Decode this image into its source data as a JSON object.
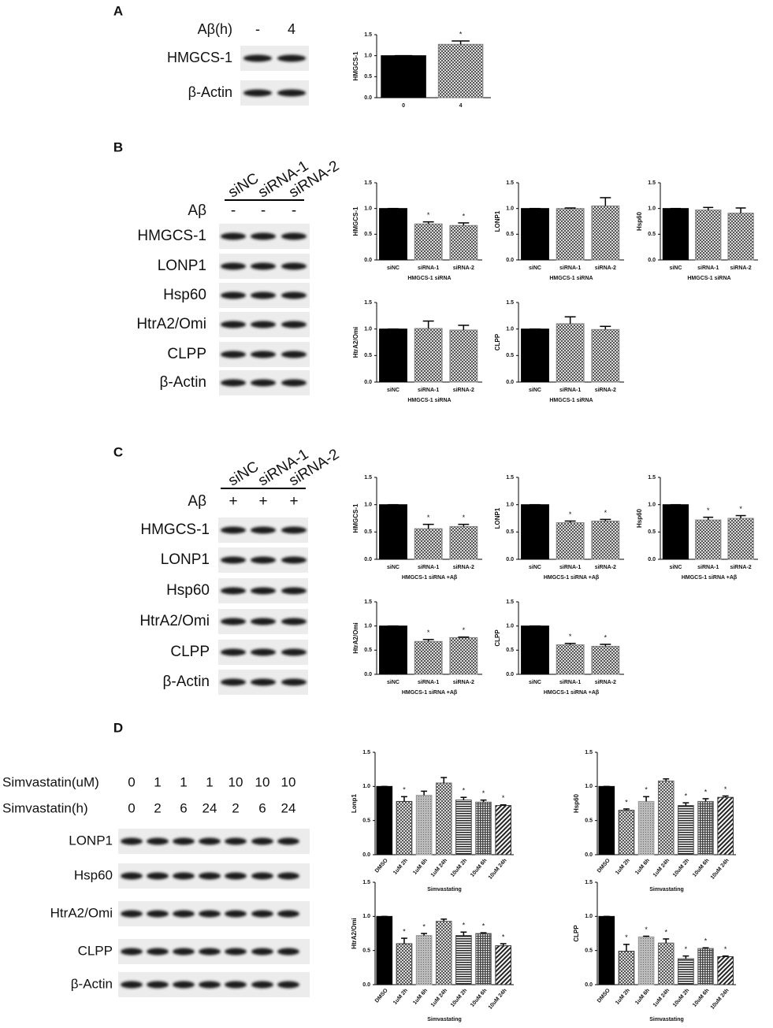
{
  "panels": [
    "A",
    "B",
    "C",
    "D"
  ],
  "blots": [
    {
      "headers": [
        {
          "name": "Aβ(h)",
          "lanes": [
            "-",
            "4"
          ]
        }
      ],
      "rows": [
        "HMGCS-1",
        "β-Actin"
      ]
    },
    {
      "lane_names": [
        "siNC",
        "siRNA-1",
        "siRNA-2"
      ],
      "headers": [
        {
          "name": "Aβ",
          "lanes": [
            "-",
            "-",
            "-"
          ]
        }
      ],
      "rows": [
        "HMGCS-1",
        "LONP1",
        "Hsp60",
        "HtrA2/Omi",
        "CLPP",
        "β-Actin"
      ]
    },
    {
      "lane_names": [
        "siNC",
        "siRNA-1",
        "siRNA-2"
      ],
      "headers": [
        {
          "name": "Aβ",
          "lanes": [
            "+",
            "+",
            "+"
          ]
        }
      ],
      "rows": [
        "HMGCS-1",
        "LONP1",
        "Hsp60",
        "HtrA2/Omi",
        "CLPP",
        "β-Actin"
      ]
    },
    {
      "headers": [
        {
          "name": "Simvastatin(uM)",
          "lanes": [
            "0",
            "1",
            "1",
            "1",
            "10",
            "10",
            "10"
          ]
        },
        {
          "name": "Simvastatin(h)",
          "lanes": [
            "0",
            "2",
            "6",
            "24",
            "2",
            "6",
            "24"
          ]
        }
      ],
      "rows": [
        "LONP1",
        "Hsp60",
        "HtrA2/Omi",
        "CLPP",
        "β-Actin"
      ]
    }
  ],
  "chart_data": [
    {
      "type": "bar",
      "ylabel": "HMGCS-1",
      "categories": [
        "0",
        "4"
      ],
      "values": [
        1.0,
        1.27
      ],
      "errors": [
        0,
        0.08
      ],
      "value_annotations": [
        null,
        "*"
      ],
      "colors": [
        "#000000",
        "#808080"
      ],
      "patterns": [
        "solid",
        "check"
      ],
      "ylim": [
        0,
        1.5
      ],
      "yticks": [
        {
          "value": 0,
          "label": "0.0"
        },
        0.5,
        {
          "value": 1,
          "label": "1.0"
        },
        1.5
      ]
    },
    {
      "type": "bar",
      "ylabel": "HMGCS-1",
      "xlabel": "HMGCS-1 siRNA",
      "categories": [
        "siNC",
        "siRNA-1",
        "siRNA-2"
      ],
      "values": [
        1.0,
        0.7,
        0.67
      ],
      "errors": [
        0,
        0.04,
        0.05
      ],
      "value_annotations": [
        null,
        "*",
        "*"
      ],
      "colors": [
        "#000000",
        "#808080",
        "#808080"
      ],
      "patterns": [
        "solid",
        "check",
        "check"
      ],
      "ylim": [
        0,
        1.5
      ],
      "yticks": [
        {
          "value": 0,
          "label": "0.0"
        },
        0.5,
        {
          "value": 1,
          "label": "1.0"
        },
        1.5
      ]
    },
    {
      "type": "bar",
      "ylabel": "LONP1",
      "xlabel": "HMGCS-1 siRNA",
      "categories": [
        "siNC",
        "siRNA-1",
        "siRNA-2"
      ],
      "values": [
        1.0,
        1.0,
        1.05
      ],
      "errors": [
        0,
        0.01,
        0.16
      ],
      "value_annotations": [
        null,
        null,
        null
      ],
      "colors": [
        "#000000",
        "#808080",
        "#808080"
      ],
      "patterns": [
        "solid",
        "check",
        "check"
      ],
      "ylim": [
        0,
        1.5
      ],
      "yticks": [
        {
          "value": 0,
          "label": "0.0"
        },
        0.5,
        {
          "value": 1,
          "label": "1.0"
        },
        1.5
      ]
    },
    {
      "type": "bar",
      "ylabel": "Hsp60",
      "xlabel": "HMGCS-1 siRNA",
      "categories": [
        "siNC",
        "siRNA-1",
        "siRNA-2"
      ],
      "values": [
        1.0,
        0.97,
        0.91
      ],
      "errors": [
        0,
        0.05,
        0.1
      ],
      "value_annotations": [
        null,
        null,
        null
      ],
      "colors": [
        "#000000",
        "#808080",
        "#808080"
      ],
      "patterns": [
        "solid",
        "check",
        "check"
      ],
      "ylim": [
        0,
        1.5
      ],
      "yticks": [
        {
          "value": 0,
          "label": "0.0"
        },
        0.5,
        {
          "value": 1,
          "label": "1.0"
        },
        1.5
      ]
    },
    {
      "type": "bar",
      "ylabel": "HtrA2/Omi",
      "xlabel": "HMGCS-1 siRNA",
      "categories": [
        "siNC",
        "siRNA-1",
        "siRNA-2"
      ],
      "values": [
        1.0,
        1.01,
        0.98
      ],
      "errors": [
        0,
        0.14,
        0.09
      ],
      "value_annotations": [
        null,
        null,
        null
      ],
      "colors": [
        "#000000",
        "#808080",
        "#808080"
      ],
      "patterns": [
        "solid",
        "check",
        "check"
      ],
      "ylim": [
        0,
        1.5
      ],
      "yticks": [
        {
          "value": 0,
          "label": "0.0"
        },
        0.5,
        {
          "value": 1,
          "label": "1.0"
        },
        1.5
      ]
    },
    {
      "type": "bar",
      "ylabel": "CLPP",
      "xlabel": "HMGCS-1 siRNA",
      "categories": [
        "siNC",
        "siRNA-1",
        "siRNA-2"
      ],
      "values": [
        1.0,
        1.1,
        0.99
      ],
      "errors": [
        0,
        0.13,
        0.06
      ],
      "value_annotations": [
        null,
        null,
        null
      ],
      "colors": [
        "#000000",
        "#808080",
        "#808080"
      ],
      "patterns": [
        "solid",
        "check",
        "check"
      ],
      "ylim": [
        0,
        1.5
      ],
      "yticks": [
        {
          "value": 0,
          "label": "0.0"
        },
        0.5,
        {
          "value": 1,
          "label": "1.0"
        },
        1.5
      ]
    },
    {
      "type": "bar",
      "ylabel": "HMGCS-1",
      "xlabel": "HMGCS-1 siRNA +Aβ",
      "categories": [
        "siNC",
        "siRNA-1",
        "siRNA-2"
      ],
      "values": [
        1.0,
        0.56,
        0.6
      ],
      "errors": [
        0,
        0.08,
        0.04
      ],
      "value_annotations": [
        null,
        "*",
        "*"
      ],
      "colors": [
        "#000000",
        "#808080",
        "#808080"
      ],
      "patterns": [
        "solid",
        "check",
        "check"
      ],
      "ylim": [
        0,
        1.5
      ],
      "yticks": [
        {
          "value": 0,
          "label": "0.0"
        },
        0.5,
        {
          "value": 1,
          "label": "1.0"
        },
        1.5
      ]
    },
    {
      "type": "bar",
      "ylabel": "LONP1",
      "xlabel": "HMGCS-1 siRNA +Aβ",
      "categories": [
        "siNC",
        "siRNA-1",
        "siRNA-2"
      ],
      "values": [
        1.0,
        0.67,
        0.7
      ],
      "errors": [
        0,
        0.03,
        0.03
      ],
      "value_annotations": [
        null,
        "*",
        "*"
      ],
      "colors": [
        "#000000",
        "#808080",
        "#808080"
      ],
      "patterns": [
        "solid",
        "check",
        "check"
      ],
      "ylim": [
        0,
        1.5
      ],
      "yticks": [
        {
          "value": 0,
          "label": "0.0"
        },
        0.5,
        {
          "value": 1,
          "label": "1.0"
        },
        1.5
      ]
    },
    {
      "type": "bar",
      "ylabel": "Hsp60",
      "xlabel": "HMGCS-1 siRNA +Aβ",
      "categories": [
        "siNC",
        "siRNA-1",
        "siRNA-2"
      ],
      "values": [
        1.0,
        0.72,
        0.75
      ],
      "errors": [
        0,
        0.05,
        0.05
      ],
      "value_annotations": [
        null,
        "*",
        "*"
      ],
      "colors": [
        "#000000",
        "#808080",
        "#808080"
      ],
      "patterns": [
        "solid",
        "check",
        "check"
      ],
      "ylim": [
        0,
        1.5
      ],
      "yticks": [
        {
          "value": 0,
          "label": "0.0"
        },
        0.5,
        {
          "value": 1,
          "label": "1.0"
        },
        1.5
      ]
    },
    {
      "type": "bar",
      "ylabel": "HtrA2/Omi",
      "xlabel": "HMGCS-1 siRNA +Aβ",
      "categories": [
        "siNC",
        "siRNA-1",
        "siRNA-2"
      ],
      "values": [
        1.0,
        0.68,
        0.76
      ],
      "errors": [
        0,
        0.04,
        0.01
      ],
      "value_annotations": [
        null,
        "*",
        "*"
      ],
      "colors": [
        "#000000",
        "#808080",
        "#808080"
      ],
      "patterns": [
        "solid",
        "check",
        "check"
      ],
      "ylim": [
        0,
        1.5
      ],
      "yticks": [
        {
          "value": 0,
          "label": "0.0"
        },
        0.5,
        {
          "value": 1,
          "label": "1.0"
        },
        1.5
      ]
    },
    {
      "type": "bar",
      "ylabel": "CLPP",
      "xlabel": "HMGCS-1 siRNA +Aβ",
      "categories": [
        "siNC",
        "siRNA-1",
        "siRNA-2"
      ],
      "values": [
        1.0,
        0.61,
        0.58
      ],
      "errors": [
        0,
        0.03,
        0.04
      ],
      "value_annotations": [
        null,
        "*",
        "*"
      ],
      "colors": [
        "#000000",
        "#808080",
        "#808080"
      ],
      "patterns": [
        "solid",
        "check",
        "check"
      ],
      "ylim": [
        0,
        1.5
      ],
      "yticks": [
        {
          "value": 0,
          "label": "0.0"
        },
        0.5,
        {
          "value": 1,
          "label": "1.0"
        },
        1.5
      ]
    },
    {
      "type": "bar",
      "ylabel": "Lonp1",
      "xlabel": "Simvastating",
      "categories": [
        "DMSO",
        "1uM 2h",
        "1uM 6h",
        "1uM 24h",
        "10uM 2h",
        "10uM 6h",
        "10uM 24h"
      ],
      "values": [
        1.0,
        0.78,
        0.87,
        1.05,
        0.8,
        0.77,
        0.72
      ],
      "errors": [
        0,
        0.07,
        0.06,
        0.08,
        0.04,
        0.03,
        0.01
      ],
      "value_annotations": [
        null,
        "*",
        null,
        null,
        "*",
        "*",
        "*"
      ],
      "colors": [
        "#000000",
        "#333333",
        "#999999",
        "#666666",
        "#444444",
        "#666666",
        "#333333"
      ],
      "patterns": [
        "solid",
        "check",
        "dots",
        "check",
        "hstripe",
        "grid",
        "diag"
      ],
      "ylim": [
        0,
        1.5
      ],
      "yticks": [
        {
          "value": 0,
          "label": "0.0"
        },
        0.5,
        {
          "value": 1,
          "label": "1.0"
        },
        1.5
      ]
    },
    {
      "type": "bar",
      "ylabel": "Hsp60",
      "xlabel": "Simvastating",
      "categories": [
        "DMSO",
        "1uM 2h",
        "1uM 6h",
        "1uM 24h",
        "10uM 2h",
        "10uM 6h",
        "10uM 24h"
      ],
      "values": [
        1.0,
        0.65,
        0.78,
        1.08,
        0.72,
        0.78,
        0.84
      ],
      "errors": [
        0,
        0.02,
        0.07,
        0.03,
        0.04,
        0.04,
        0.02
      ],
      "value_annotations": [
        null,
        "*",
        "*",
        null,
        "*",
        "*",
        "*"
      ],
      "colors": [
        "#000000",
        "#333333",
        "#999999",
        "#666666",
        "#444444",
        "#666666",
        "#333333"
      ],
      "patterns": [
        "solid",
        "check",
        "dots",
        "check",
        "hstripe",
        "grid",
        "diag"
      ],
      "ylim": [
        0,
        1.5
      ],
      "yticks": [
        {
          "value": 0,
          "label": "0.0"
        },
        0.5,
        {
          "value": 1,
          "label": "1.0"
        },
        1.5
      ]
    },
    {
      "type": "bar",
      "ylabel": "HtrA2/Omi",
      "xlabel": "Simvastating",
      "categories": [
        "DMSO",
        "1uM 2h",
        "1uM 6h",
        "1uM 24h",
        "10uM 2h",
        "10uM 6h",
        "10uM 24h"
      ],
      "values": [
        1.0,
        0.6,
        0.72,
        0.93,
        0.72,
        0.75,
        0.57
      ],
      "errors": [
        0,
        0.08,
        0.03,
        0.03,
        0.05,
        0.01,
        0.03
      ],
      "value_annotations": [
        null,
        "*",
        "*",
        null,
        "*",
        "*",
        "*"
      ],
      "colors": [
        "#000000",
        "#333333",
        "#999999",
        "#666666",
        "#444444",
        "#666666",
        "#333333"
      ],
      "patterns": [
        "solid",
        "check",
        "dots",
        "check",
        "hstripe",
        "grid",
        "diag"
      ],
      "ylim": [
        0,
        1.5
      ],
      "yticks": [
        {
          "value": 0,
          "label": "0.0"
        },
        0.5,
        {
          "value": 1,
          "label": "1.0"
        },
        1.5
      ]
    },
    {
      "type": "bar",
      "ylabel": "CLPP",
      "xlabel": "Simvastating",
      "categories": [
        "DMSO",
        "1uM 2h",
        "1uM 6h",
        "1uM 24h",
        "10uM 2h",
        "10uM 6h",
        "10uM 24h"
      ],
      "values": [
        1.0,
        0.49,
        0.7,
        0.61,
        0.38,
        0.53,
        0.41
      ],
      "errors": [
        0,
        0.1,
        0.01,
        0.06,
        0.04,
        0.01,
        0.01
      ],
      "value_annotations": [
        null,
        "*",
        "*",
        "*",
        "*",
        "*",
        "*"
      ],
      "colors": [
        "#000000",
        "#333333",
        "#999999",
        "#666666",
        "#444444",
        "#666666",
        "#333333"
      ],
      "patterns": [
        "solid",
        "check",
        "dots",
        "check",
        "hstripe",
        "grid",
        "diag"
      ],
      "ylim": [
        0,
        1.5
      ],
      "yticks": [
        {
          "value": 0,
          "label": "0.0"
        },
        0.5,
        {
          "value": 1,
          "label": "1.0"
        },
        1.5
      ]
    }
  ]
}
